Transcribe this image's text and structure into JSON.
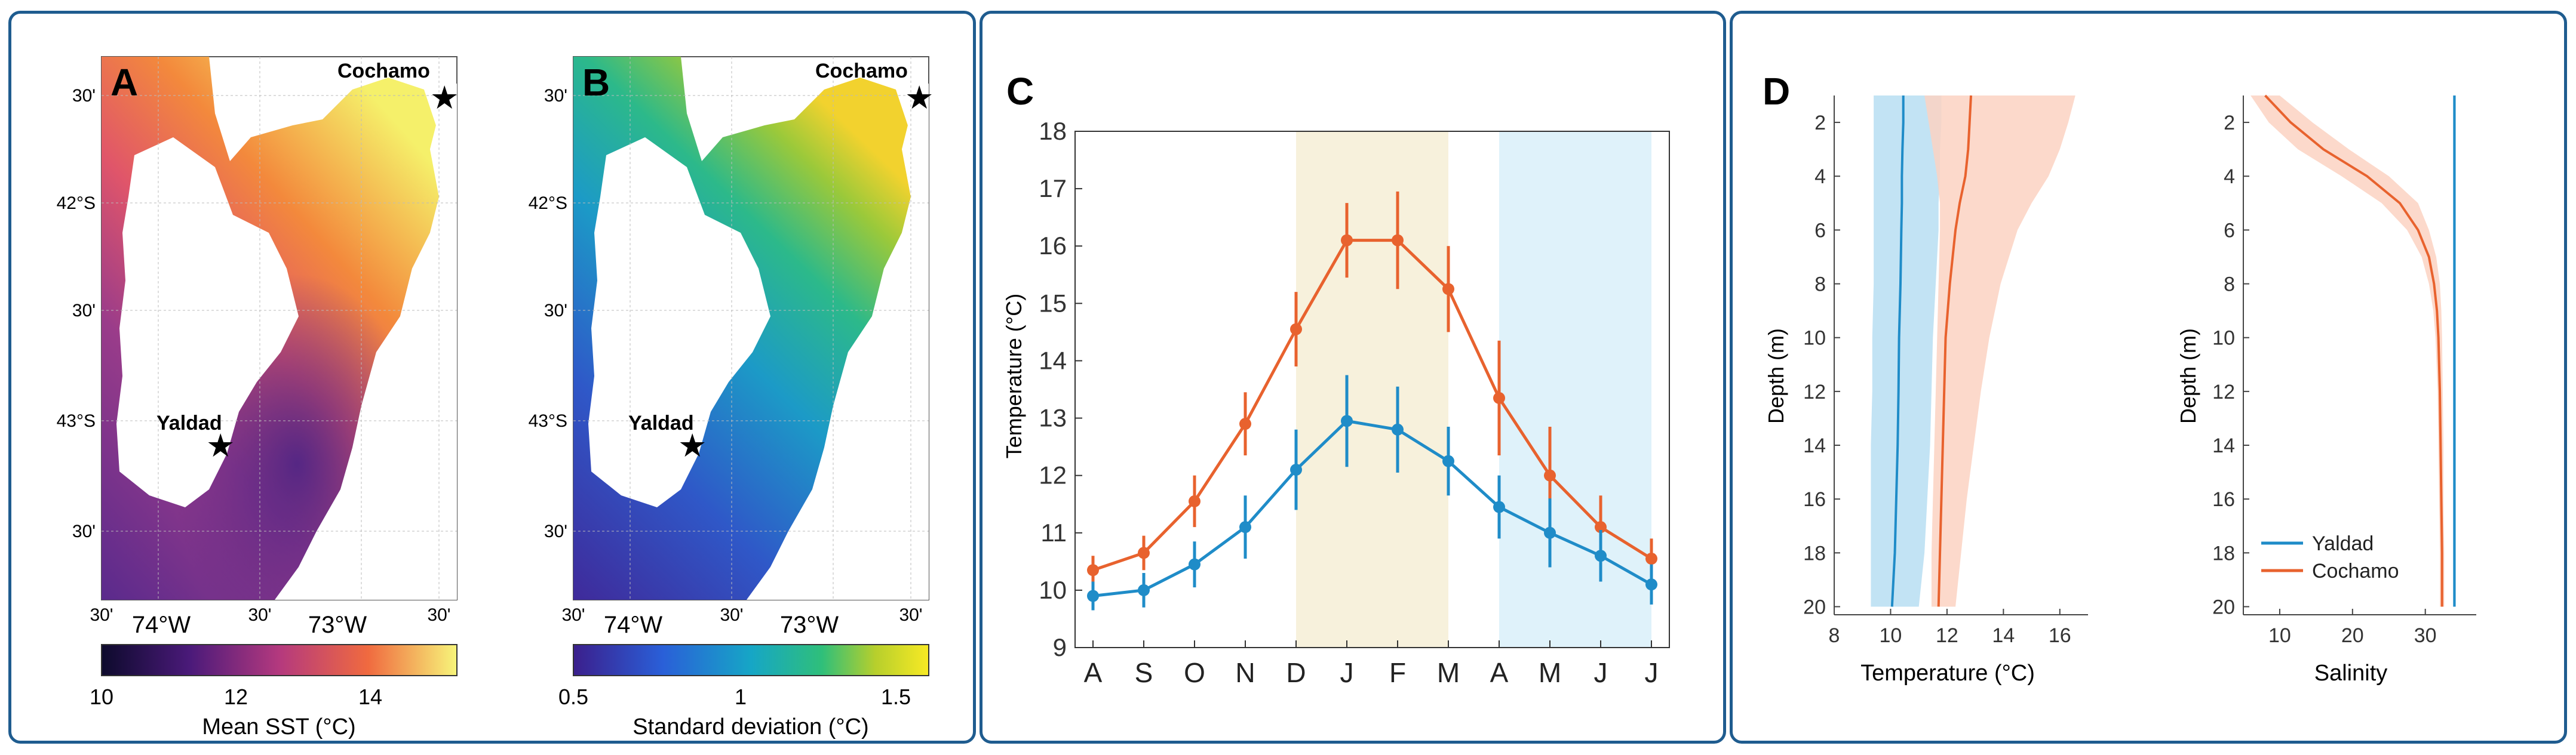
{
  "colors": {
    "panel_border": "#1f5c8f",
    "yaldad": "#1f8cc8",
    "cochamo": "#e8622e",
    "summer_shade": "#f7f1dc",
    "winter_shade": "#dff2fa",
    "cochamo_band": "#fbd2c2",
    "yaldad_band": "#b7def2",
    "overlap_band": "#c8c8c8"
  },
  "panelA": {
    "label": "A",
    "site_top": "Cochamo",
    "site_bottom": "Yaldad",
    "lat_labels": [
      "30'",
      "42°S",
      "30'",
      "43°S",
      "30'"
    ],
    "lon_labels": [
      "30'",
      "74°W",
      "30'",
      "73°W",
      "30'"
    ],
    "colorbar_ticks": [
      "10",
      "12",
      "14"
    ],
    "colorbar_title": "Mean SST (°C)"
  },
  "panelB": {
    "label": "B",
    "site_top": "Cochamo",
    "site_bottom": "Yaldad",
    "lat_labels": [
      "30'",
      "42°S",
      "30'",
      "43°S",
      "30'"
    ],
    "lon_labels": [
      "30'",
      "74°W",
      "30'",
      "73°W",
      "30'"
    ],
    "colorbar_ticks": [
      "0.5",
      "1",
      "1.5"
    ],
    "colorbar_title": "Standard deviation (°C)"
  },
  "chart_data": [
    {
      "id": "C",
      "panel_label": "C",
      "type": "line",
      "ylabel": "Temperature (°C)",
      "xlabel": "",
      "ylim": [
        9,
        18
      ],
      "yticks": [
        "9",
        "10",
        "11",
        "12",
        "13",
        "14",
        "15",
        "16",
        "17",
        "18"
      ],
      "categories": [
        "A",
        "S",
        "O",
        "N",
        "D",
        "J",
        "F",
        "M",
        "A",
        "M",
        "J",
        "J"
      ],
      "shaded": [
        {
          "name": "summer",
          "from_index": 4,
          "to_index": 7
        },
        {
          "name": "winter",
          "from_index": 8,
          "to_index": 11
        }
      ],
      "series": [
        {
          "name": "Cochamo",
          "values": [
            10.35,
            10.65,
            11.55,
            12.9,
            14.55,
            16.1,
            16.1,
            15.25,
            13.35,
            12.0,
            11.1,
            10.55
          ],
          "errors": [
            0.25,
            0.3,
            0.45,
            0.55,
            0.65,
            0.65,
            0.85,
            0.75,
            1.0,
            0.85,
            0.55,
            0.35
          ]
        },
        {
          "name": "Yaldad",
          "values": [
            9.9,
            10.0,
            10.45,
            11.1,
            12.1,
            12.95,
            12.8,
            12.25,
            11.45,
            11.0,
            10.6,
            10.1
          ],
          "errors": [
            0.25,
            0.3,
            0.4,
            0.55,
            0.7,
            0.8,
            0.75,
            0.6,
            0.55,
            0.6,
            0.45,
            0.35
          ]
        }
      ]
    },
    {
      "id": "D1",
      "panel_label": "D",
      "type": "line",
      "xlabel": "Temperature (°C)",
      "ylabel": "Depth (m)",
      "xlim": [
        8,
        17
      ],
      "ylim": [
        1,
        20.3
      ],
      "xticks": [
        "8",
        "10",
        "12",
        "14",
        "16"
      ],
      "yticks": [
        "2",
        "4",
        "6",
        "8",
        "10",
        "12",
        "14",
        "16",
        "18",
        "20"
      ],
      "depths": [
        1,
        2,
        3,
        4,
        5,
        6,
        8,
        10,
        12,
        14,
        16,
        18,
        20
      ],
      "series": [
        {
          "name": "Yaldad",
          "mean": [
            10.45,
            10.45,
            10.42,
            10.4,
            10.4,
            10.38,
            10.35,
            10.3,
            10.28,
            10.25,
            10.2,
            10.15,
            10.05
          ],
          "lower": [
            9.4,
            9.4,
            9.4,
            9.4,
            9.4,
            9.4,
            9.4,
            9.35,
            9.35,
            9.3,
            9.3,
            9.3,
            9.3
          ],
          "upper": [
            11.8,
            11.8,
            11.75,
            11.75,
            11.7,
            11.7,
            11.6,
            11.5,
            11.45,
            11.4,
            11.3,
            11.2,
            11.0
          ]
        },
        {
          "name": "Cochamo",
          "mean": [
            12.85,
            12.8,
            12.75,
            12.65,
            12.45,
            12.3,
            12.1,
            11.95,
            11.9,
            11.85,
            11.8,
            11.75,
            11.7
          ],
          "lower": [
            11.2,
            11.35,
            11.5,
            11.65,
            11.75,
            11.75,
            11.7,
            11.65,
            11.6,
            11.55,
            11.5,
            11.45,
            11.45
          ],
          "upper": [
            16.55,
            16.3,
            16.0,
            15.6,
            15.0,
            14.5,
            13.9,
            13.5,
            13.2,
            12.95,
            12.7,
            12.5,
            12.3
          ]
        }
      ]
    },
    {
      "id": "D2",
      "type": "line",
      "xlabel": "Salinity",
      "ylabel": "Depth (m)",
      "xlim": [
        5,
        37
      ],
      "ylim": [
        1,
        20.3
      ],
      "xticks": [
        "10",
        "20",
        "30"
      ],
      "yticks": [
        "2",
        "4",
        "6",
        "8",
        "10",
        "12",
        "14",
        "16",
        "18",
        "20"
      ],
      "depths": [
        1,
        2,
        3,
        4,
        5,
        6,
        7,
        8,
        9,
        10,
        12,
        14,
        16,
        18,
        20
      ],
      "series": [
        {
          "name": "Yaldad",
          "mean": [
            34.0,
            34.0,
            34.0,
            34.0,
            34.0,
            34.0,
            34.0,
            34.0,
            34.0,
            34.0,
            34.0,
            34.0,
            34.0,
            34.0,
            34.0
          ],
          "lower": [
            33.8,
            33.8,
            33.8,
            33.8,
            33.8,
            33.8,
            33.8,
            33.8,
            33.8,
            33.8,
            33.8,
            33.8,
            33.8,
            33.8,
            33.8
          ],
          "upper": [
            34.2,
            34.2,
            34.2,
            34.2,
            34.2,
            34.2,
            34.2,
            34.2,
            34.2,
            34.2,
            34.2,
            34.2,
            34.2,
            34.2,
            34.2
          ]
        },
        {
          "name": "Cochamo",
          "mean": [
            8.0,
            11.5,
            16.0,
            22.0,
            26.5,
            29.0,
            30.5,
            31.2,
            31.6,
            31.8,
            32.0,
            32.1,
            32.2,
            32.3,
            32.3
          ],
          "lower": [
            6.0,
            8.5,
            12.5,
            18.5,
            24.0,
            27.5,
            29.5,
            30.5,
            31.1,
            31.4,
            31.7,
            31.8,
            31.9,
            32.0,
            32.0
          ],
          "upper": [
            10.0,
            14.5,
            19.5,
            25.0,
            29.0,
            30.5,
            31.5,
            32.0,
            32.2,
            32.3,
            32.4,
            32.5,
            32.5,
            32.6,
            32.6
          ]
        }
      ],
      "legend": [
        "Yaldad",
        "Cochamo"
      ],
      "legend_position": "bottom-left"
    }
  ]
}
